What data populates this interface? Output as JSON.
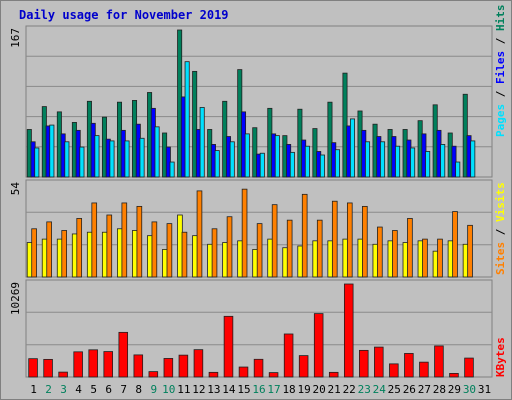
{
  "title": "Daily usage for November 2019",
  "colors": {
    "background": "#c0c0c0",
    "hits": "#00805c",
    "files": "#0000ff",
    "pages": "#00e0ff",
    "visits": "#ffff00",
    "sites": "#ff8000",
    "kbytes": "#ff0000",
    "title": "#0000cc",
    "weekend_day": "#00805c"
  },
  "chart_data": [
    {
      "type": "bar",
      "panel": "hits_files_pages",
      "categories": [
        "1",
        "2",
        "3",
        "4",
        "5",
        "6",
        "7",
        "8",
        "9",
        "10",
        "11",
        "12",
        "13",
        "14",
        "15",
        "16",
        "17",
        "18",
        "19",
        "20",
        "21",
        "22",
        "23",
        "24",
        "25",
        "26",
        "27",
        "28",
        "29",
        "30",
        "31"
      ],
      "y_max_label": "167",
      "ylim": [
        0,
        167
      ],
      "grid": true,
      "series": [
        {
          "name": "Hits",
          "values": [
            54,
            80,
            74,
            62,
            86,
            68,
            85,
            87,
            96,
            50,
            167,
            120,
            54,
            86,
            122,
            56,
            78,
            47,
            77,
            55,
            85,
            118,
            75,
            60,
            54,
            54,
            64,
            82,
            50,
            94,
            0
          ]
        },
        {
          "name": "Files",
          "values": [
            40,
            58,
            49,
            53,
            61,
            43,
            53,
            60,
            78,
            34,
            91,
            54,
            37,
            46,
            74,
            26,
            49,
            37,
            42,
            29,
            39,
            58,
            53,
            46,
            46,
            42,
            49,
            53,
            35,
            47,
            0
          ]
        },
        {
          "name": "Pages",
          "values": [
            33,
            59,
            40,
            34,
            47,
            41,
            41,
            44,
            57,
            17,
            131,
            79,
            30,
            40,
            49,
            27,
            47,
            28,
            35,
            25,
            31,
            66,
            40,
            40,
            35,
            33,
            29,
            37,
            17,
            41,
            0
          ]
        }
      ],
      "legend": [
        "Pages",
        "Files",
        "Hits"
      ],
      "legend_placement": "right, vertical"
    },
    {
      "type": "bar",
      "panel": "visits_sites",
      "categories": [
        "1",
        "2",
        "3",
        "4",
        "5",
        "6",
        "7",
        "8",
        "9",
        "10",
        "11",
        "12",
        "13",
        "14",
        "15",
        "16",
        "17",
        "18",
        "19",
        "20",
        "21",
        "22",
        "23",
        "24",
        "25",
        "26",
        "27",
        "28",
        "29",
        "30",
        "31"
      ],
      "y_max_label": "54",
      "ylim": [
        0,
        54
      ],
      "grid": true,
      "series": [
        {
          "name": "Visits",
          "values": [
            20,
            22,
            22,
            25,
            26,
            26,
            28,
            27,
            24,
            16,
            36,
            24,
            19,
            20,
            21,
            16,
            22,
            17,
            18,
            21,
            21,
            22,
            22,
            19,
            21,
            20,
            21,
            15,
            21,
            19,
            0
          ]
        },
        {
          "name": "Sites",
          "values": [
            28,
            32,
            27,
            34,
            43,
            36,
            43,
            41,
            32,
            31,
            26,
            50,
            28,
            35,
            51,
            31,
            42,
            33,
            48,
            33,
            44,
            43,
            41,
            29,
            27,
            34,
            22,
            22,
            38,
            30,
            0
          ]
        }
      ],
      "legend": [
        "Sites",
        "/",
        "Visits"
      ],
      "legend_placement": "right, vertical"
    },
    {
      "type": "bar",
      "panel": "kbytes",
      "categories": [
        "1",
        "2",
        "3",
        "4",
        "5",
        "6",
        "7",
        "8",
        "9",
        "10",
        "11",
        "12",
        "13",
        "14",
        "15",
        "16",
        "17",
        "18",
        "19",
        "20",
        "21",
        "22",
        "23",
        "24",
        "25",
        "26",
        "27",
        "28",
        "29",
        "30",
        "31"
      ],
      "y_max_label": "10269",
      "ylim": [
        0,
        10269
      ],
      "grid": true,
      "series": [
        {
          "name": "KBytes",
          "values": [
            2024,
            1944,
            540,
            2780,
            3002,
            2809,
            4930,
            2440,
            595,
            2048,
            2414,
            3020,
            514,
            6700,
            1100,
            1954,
            486,
            4750,
            2363,
            7000,
            514,
            10269,
            2940,
            3302,
            1450,
            2600,
            1640,
            3430,
            396,
            2090,
            0
          ]
        }
      ],
      "legend": [
        "KBytes"
      ],
      "legend_placement": "right, vertical"
    }
  ],
  "weekend_days": [
    2,
    3,
    9,
    10,
    16,
    17,
    23,
    24,
    30
  ]
}
